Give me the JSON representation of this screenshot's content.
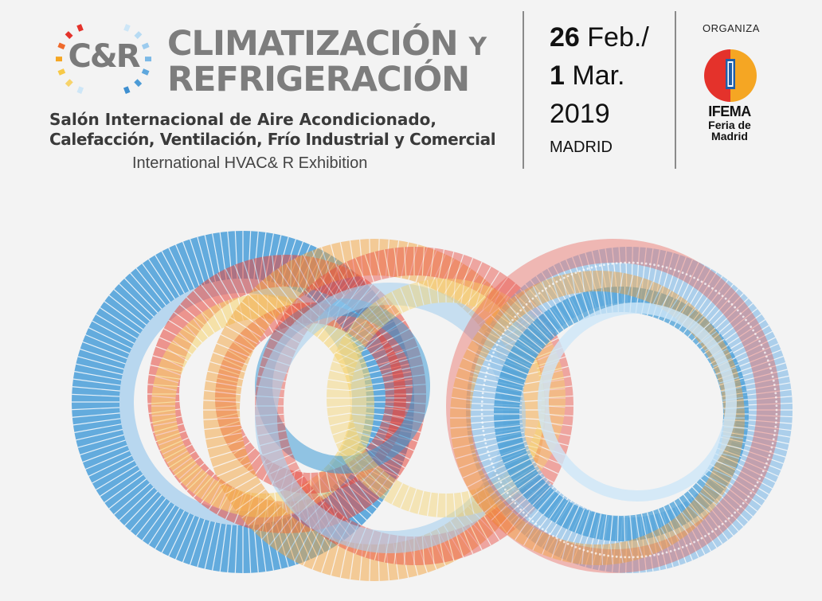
{
  "header": {
    "logo_text": "C&R",
    "title_line1_main": "CLIMATIZACIÓN",
    "title_line1_small": "Y",
    "title_line2": "REFRIGERACIÓN",
    "subtitle_line1": "Salón Internacional de Aire Acondicionado,",
    "subtitle_line2": "Calefacción, Ventilación, Frío Industrial y Comercial",
    "subtitle_english": "International HVAC& R Exhibition"
  },
  "event": {
    "start_day": "26",
    "start_month": "Feb./",
    "end_day": "1",
    "end_month": "Mar.",
    "year": "2019",
    "city": "MADRID"
  },
  "organizer": {
    "label": "ORGANIZA",
    "name": "IFEMA",
    "tagline_line1": "Feria de",
    "tagline_line2": "Madrid"
  },
  "colors": {
    "title_gray": "#7d7d7d",
    "ring_blue": "#3e9ad6",
    "ring_light_blue": "#a9d0ee",
    "ring_red": "#e8473c",
    "ring_orange": "#f3a23c",
    "ring_yellow": "#f7d36b",
    "ifema_red": "#e4322b",
    "ifema_orange": "#f5a623",
    "ifema_blue": "#1f5fa8"
  },
  "icons": {
    "logo_mark": "color-gradient-bracket-icon",
    "organizer_logo": "ifema-logo-icon",
    "artwork": "overlapping-rings-artwork"
  }
}
